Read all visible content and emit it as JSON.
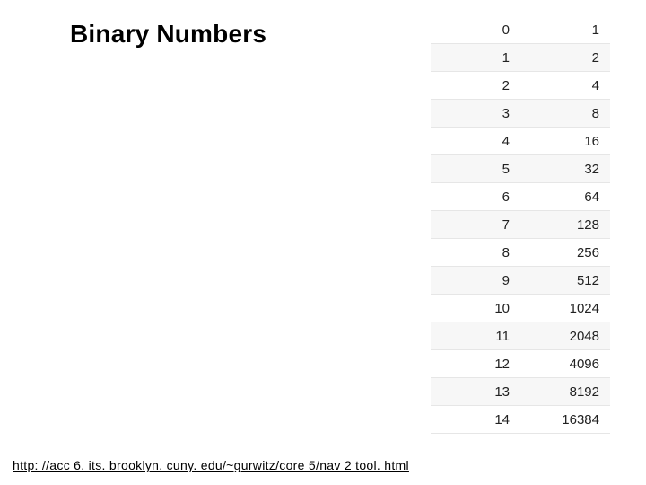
{
  "title": "Binary Numbers",
  "table": {
    "rows": [
      {
        "exp": 0,
        "value": 1
      },
      {
        "exp": 1,
        "value": 2
      },
      {
        "exp": 2,
        "value": 4
      },
      {
        "exp": 3,
        "value": 8
      },
      {
        "exp": 4,
        "value": 16
      },
      {
        "exp": 5,
        "value": 32
      },
      {
        "exp": 6,
        "value": 64
      },
      {
        "exp": 7,
        "value": 128
      },
      {
        "exp": 8,
        "value": 256
      },
      {
        "exp": 9,
        "value": 512
      },
      {
        "exp": 10,
        "value": 1024
      },
      {
        "exp": 11,
        "value": 2048
      },
      {
        "exp": 12,
        "value": 4096
      },
      {
        "exp": 13,
        "value": 8192
      },
      {
        "exp": 14,
        "value": 16384
      }
    ],
    "row_border_color": "#e6e6e6",
    "row_stripe_color": "#f7f7f7",
    "font_size_pt": 11,
    "text_color": "#222222"
  },
  "footer_link_text": "http: //acc 6. its. brooklyn. cuny. edu/~gurwitz/core 5/nav 2 tool. html",
  "colors": {
    "background": "#ffffff",
    "title_text": "#000000",
    "link_text": "#000000"
  },
  "typography": {
    "title_font_size_pt": 21,
    "title_font_weight": "bold",
    "font_family": "Arial"
  }
}
